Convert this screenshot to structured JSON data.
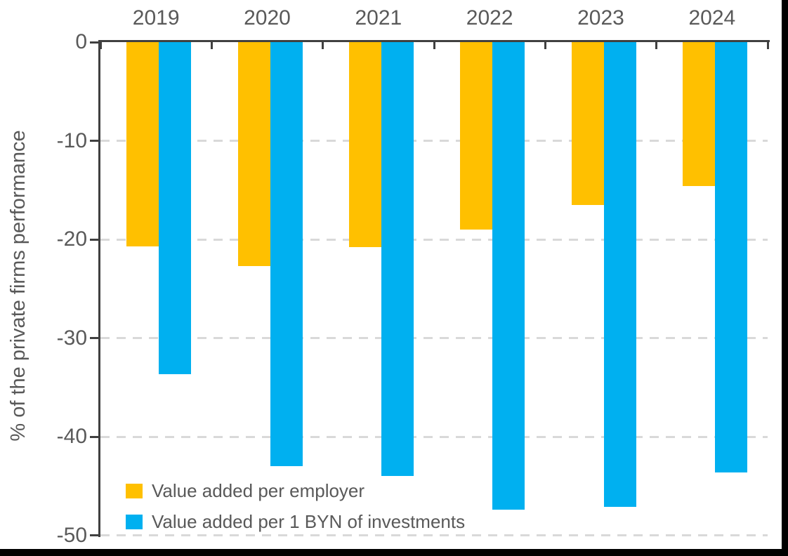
{
  "chart_data": {
    "type": "bar",
    "orientation": "vertical-negative",
    "categories": [
      "2019",
      "2020",
      "2021",
      "2022",
      "2023",
      "2024"
    ],
    "series": [
      {
        "name": "Value added per employer",
        "color": "#FFC000",
        "values": [
          -20.7,
          -22.7,
          -20.8,
          -19,
          -16.5,
          -14.6
        ]
      },
      {
        "name": "Value added per 1 BYN of investments",
        "color": "#00B0F0",
        "values": [
          -33.7,
          -43,
          -44,
          -47.4,
          -47.1,
          -43.6
        ]
      }
    ],
    "xlabel": "",
    "ylabel": "% of the private firms performance",
    "ylim": [
      -50,
      0
    ],
    "yticks": [
      0,
      -10,
      -20,
      -30,
      -40,
      -50
    ],
    "grid": "horizontal dashed",
    "x_axis_position": "top",
    "legend_position": "inside bottom-left"
  },
  "colors": {
    "axis": "#404040",
    "tick_label": "#595959",
    "gridline": "#D9D9D9",
    "series_employer": "#FFC000",
    "series_investments": "#00B0F0",
    "background": "#FFFFFF"
  }
}
